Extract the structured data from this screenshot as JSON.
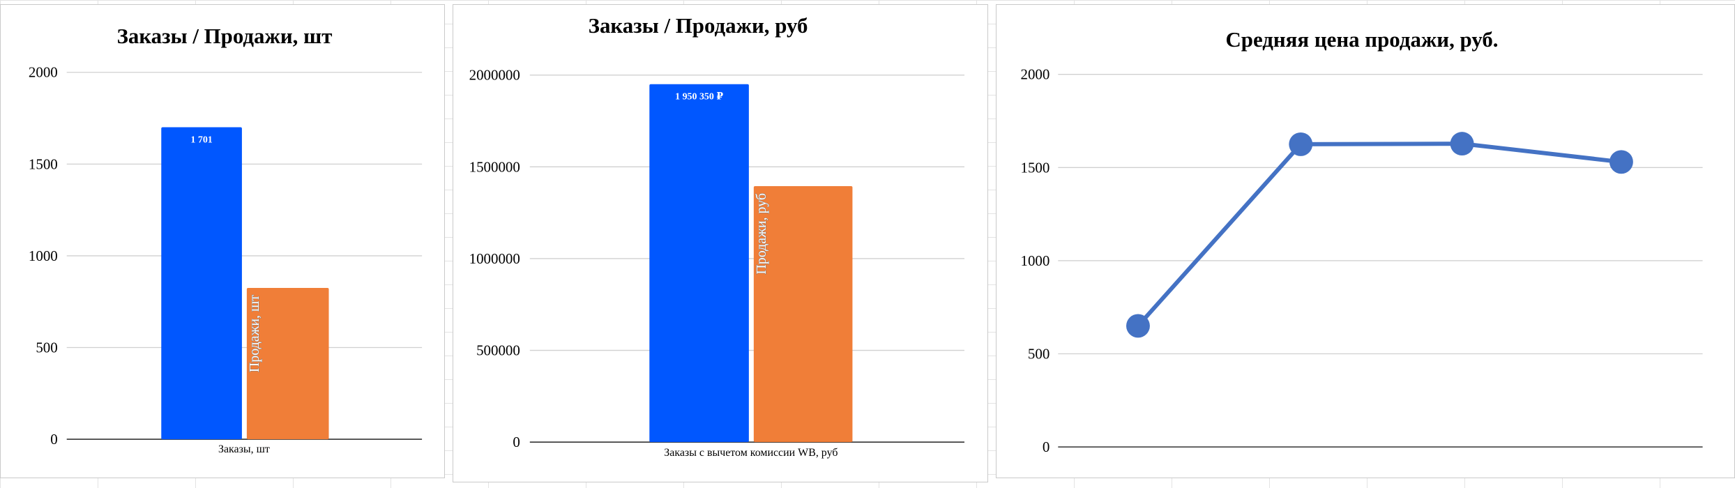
{
  "chart_data": [
    {
      "type": "bar",
      "title": "Заказы / Продажи, шт",
      "categories": [
        "Заказы, шт"
      ],
      "series": [
        {
          "name": "Заказы, шт",
          "values": [
            1701
          ],
          "color": "#0057ff",
          "label": "1 701"
        },
        {
          "name": "Продажи, шт",
          "values": [
            825
          ],
          "color": "#f07e38",
          "label": "Продажи, шт"
        }
      ],
      "yticks": [
        "0",
        "500",
        "1000",
        "1500",
        "2000"
      ],
      "ylim": [
        0,
        2000
      ],
      "grid": true,
      "legend": "none"
    },
    {
      "type": "bar",
      "title": "Заказы / Продажи, руб",
      "categories": [
        "Заказы с вычетом комиссии WB, руб"
      ],
      "series": [
        {
          "name": "Заказы с вычетом комиссии WB, руб",
          "values": [
            1950350
          ],
          "color": "#0057ff",
          "label": "1 950 350 ₽"
        },
        {
          "name": "Продажи, руб",
          "values": [
            1395000
          ],
          "color": "#f07e38",
          "label": "Продажи, руб"
        }
      ],
      "yticks": [
        "0",
        "500000",
        "1000000",
        "1500000",
        "2000000"
      ],
      "ylim": [
        0,
        2000000
      ],
      "grid": true,
      "legend": "none"
    },
    {
      "type": "line",
      "title": "Средняя цена продажи, руб.",
      "x": [
        1,
        2,
        3,
        4
      ],
      "series": [
        {
          "values": [
            650,
            1625,
            1628,
            1530
          ],
          "color": "#4472c4"
        }
      ],
      "yticks": [
        "0",
        "500",
        "1000",
        "1500",
        "2000"
      ],
      "ylim": [
        0,
        2000
      ],
      "grid": true,
      "legend": "none"
    }
  ]
}
